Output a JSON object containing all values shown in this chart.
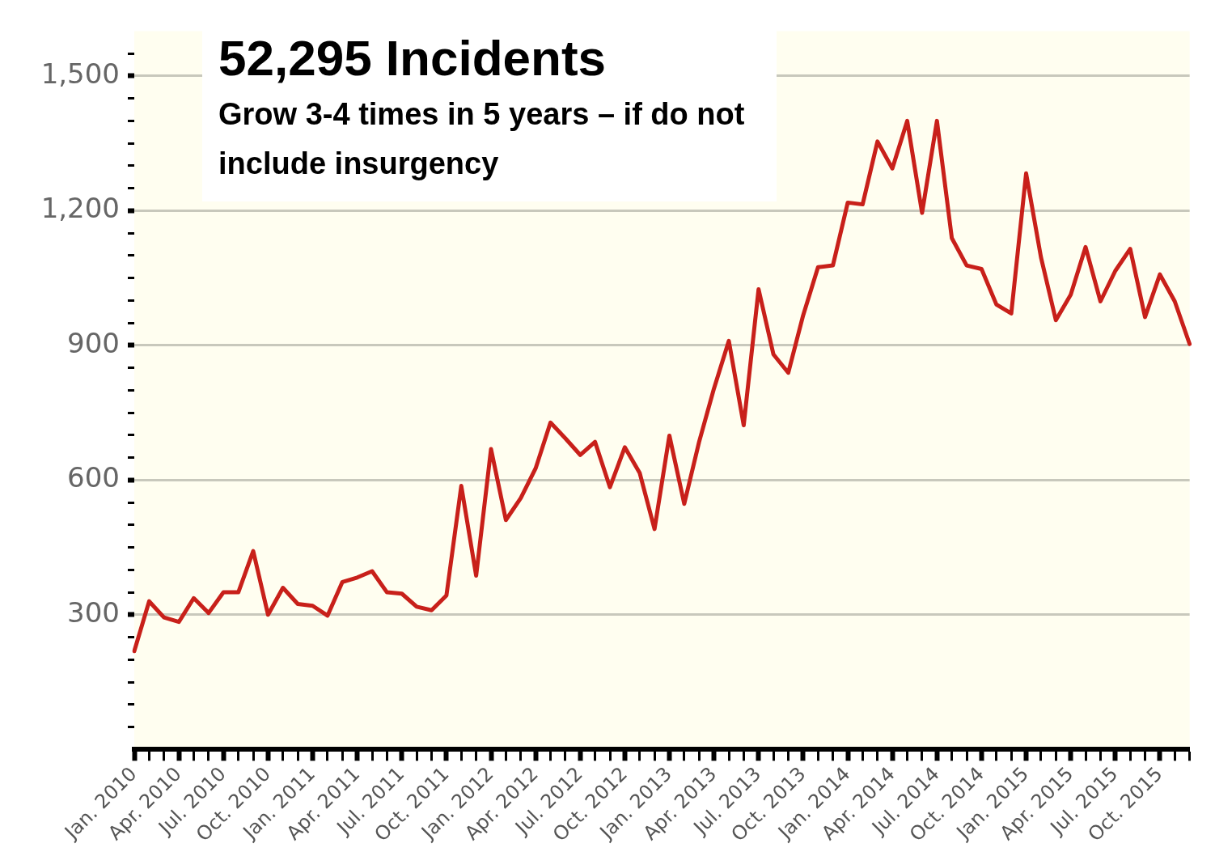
{
  "chart_data": {
    "type": "line",
    "title": "52,295 Incidents",
    "subtitle": "Grow 3-4 times in 5 years – if do not include insurgency",
    "categories": [
      "Jan. 2010",
      null,
      null,
      "Apr. 2010",
      null,
      null,
      "Jul. 2010",
      null,
      null,
      "Oct. 2010",
      null,
      null,
      "Jan. 2011",
      null,
      null,
      "Apr. 2011",
      null,
      null,
      "Jul. 2011",
      null,
      null,
      "Oct. 2011",
      null,
      null,
      "Jan. 2012",
      null,
      null,
      "Apr. 2012",
      null,
      null,
      "Jul. 2012",
      null,
      null,
      "Oct. 2012",
      null,
      null,
      "Jan. 2013",
      null,
      null,
      "Apr. 2013",
      null,
      null,
      "Jul. 2013",
      null,
      null,
      "Oct. 2013",
      null,
      null,
      "Jan. 2014",
      null,
      null,
      "Apr. 2014",
      null,
      null,
      "Jul. 2014",
      null,
      null,
      "Oct. 2014",
      null,
      null,
      "Jan. 2015",
      null,
      null,
      "Apr. 2015",
      null,
      null,
      "Jul. 2015",
      null,
      null,
      "Oct. 2015",
      null,
      null
    ],
    "series": [
      {
        "color": "#c8201a",
        "values": [
          219,
          330,
          294,
          284,
          337,
          304,
          350,
          350,
          442,
          300,
          360,
          324,
          320,
          298,
          373,
          383,
          397,
          350,
          347,
          318,
          310,
          343,
          587,
          387,
          669,
          511,
          560,
          626,
          728,
          693,
          656,
          685,
          584,
          673,
          616,
          491,
          699,
          547,
          685,
          804,
          910,
          722,
          1025,
          880,
          839,
          967,
          1074,
          1078,
          1218,
          1214,
          1354,
          1294,
          1400,
          1195,
          1400,
          1139,
          1078,
          1070,
          991,
          971,
          1283,
          1096,
          956,
          1013,
          1119,
          998,
          1066,
          1115,
          963,
          1058,
          998,
          903
        ]
      }
    ],
    "ylim": [
      0,
      1600
    ],
    "yticks": [
      {
        "value": 50,
        "label": null
      },
      {
        "value": 100,
        "label": null
      },
      {
        "value": 150,
        "label": null
      },
      {
        "value": 200,
        "label": null
      },
      {
        "value": 250,
        "label": null
      },
      300,
      {
        "value": 350,
        "label": null
      },
      {
        "value": 400,
        "label": null
      },
      {
        "value": 450,
        "label": null
      },
      {
        "value": 500,
        "label": null
      },
      {
        "value": 550,
        "label": null
      },
      600,
      {
        "value": 650,
        "label": null
      },
      {
        "value": 700,
        "label": null
      },
      {
        "value": 750,
        "label": null
      },
      {
        "value": 800,
        "label": null
      },
      {
        "value": 850,
        "label": null
      },
      900,
      {
        "value": 950,
        "label": null
      },
      {
        "value": 1000,
        "label": null
      },
      {
        "value": 1050,
        "label": null
      },
      {
        "value": 1100,
        "label": null
      },
      {
        "value": 1150,
        "label": null
      },
      {
        "value": 1200,
        "label": "1,200"
      },
      {
        "value": 1250,
        "label": null
      },
      {
        "value": 1300,
        "label": null
      },
      {
        "value": 1350,
        "label": null
      },
      {
        "value": 1400,
        "label": null
      },
      {
        "value": 1450,
        "label": null
      },
      {
        "value": 1500,
        "label": "1,500"
      },
      {
        "value": 1550,
        "label": null
      }
    ],
    "grid": "y",
    "marker": "none",
    "line_style": "solid",
    "legend": false
  }
}
